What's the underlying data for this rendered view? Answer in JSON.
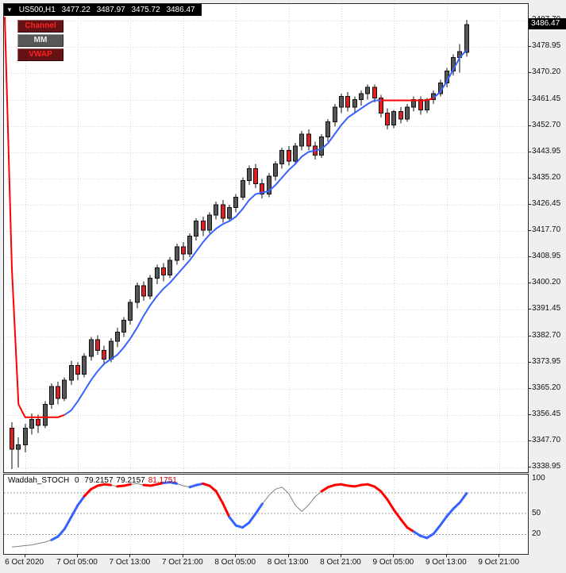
{
  "style": {
    "page_bg": "#efefef",
    "chart_bg": "#ffffff",
    "panel_border": "#2b2b2b",
    "grid": "#d6d6d6",
    "level": "#9f9f9f",
    "candle_bull": "#565656",
    "candle_bear": "#dd2020",
    "candle_outline": "#111111",
    "axis_text": "#111111"
  },
  "title_bar": {
    "marker": "▼",
    "symbol_period": "US500,H1",
    "open": "3477.22",
    "high": "3487.97",
    "low": "3475.72",
    "close": "3486.47"
  },
  "buttons": [
    {
      "label": "Channel",
      "bg": "#641214",
      "fg": "#ff2222"
    },
    {
      "label": "MM",
      "bg": "#575757",
      "fg": "#efefef"
    },
    {
      "label": "VWAP",
      "bg": "#641214",
      "fg": "#ff2222"
    }
  ],
  "price_axis": {
    "current": {
      "label": "3486.47",
      "value": 3486.47,
      "bg": "#000000",
      "fg": "#ffffff"
    },
    "labels": [
      {
        "text": "3487.70",
        "value": 3487.7
      },
      {
        "text": "3478.95",
        "value": 3478.95
      },
      {
        "text": "3470.20",
        "value": 3470.2
      },
      {
        "text": "3461.45",
        "value": 3461.45
      },
      {
        "text": "3452.70",
        "value": 3452.7
      },
      {
        "text": "3443.95",
        "value": 3443.95
      },
      {
        "text": "3435.20",
        "value": 3435.2
      },
      {
        "text": "3426.45",
        "value": 3426.45
      },
      {
        "text": "3417.70",
        "value": 3417.7
      },
      {
        "text": "3408.95",
        "value": 3408.95
      },
      {
        "text": "3400.20",
        "value": 3400.2
      },
      {
        "text": "3391.45",
        "value": 3391.45
      },
      {
        "text": "3382.70",
        "value": 3382.7
      },
      {
        "text": "3373.95",
        "value": 3373.95
      },
      {
        "text": "3365.20",
        "value": 3365.2
      },
      {
        "text": "3356.45",
        "value": 3356.45
      },
      {
        "text": "3347.70",
        "value": 3347.7
      },
      {
        "text": "3338.95",
        "value": 3338.95
      }
    ]
  },
  "time_axis": {
    "labels": [
      {
        "text": "6 Oct 2020",
        "candle_index": 2
      },
      {
        "text": "7 Oct 05:00",
        "candle_index": 10
      },
      {
        "text": "7 Oct 13:00",
        "candle_index": 18
      },
      {
        "text": "7 Oct 21:00",
        "candle_index": 26
      },
      {
        "text": "8 Oct 05:00",
        "candle_index": 34
      },
      {
        "text": "8 Oct 13:00",
        "candle_index": 42
      },
      {
        "text": "8 Oct 21:00",
        "candle_index": 50
      },
      {
        "text": "9 Oct 05:00",
        "candle_index": 58
      },
      {
        "text": "9 Oct 13:00",
        "candle_index": 66
      },
      {
        "text": "9 Oct 21:00",
        "candle_index": 74
      }
    ]
  },
  "chart_data": {
    "type": "candlestick",
    "symbol": "US500",
    "timeframe": "H1",
    "ohlc_current": {
      "open": 3477.22,
      "high": 3487.97,
      "low": 3475.72,
      "close": 3486.47
    },
    "y_range": [
      3337.4,
      3493.3
    ],
    "layout": {
      "x0": 10,
      "dx": 8.3,
      "grid": true
    },
    "candles": [
      [
        3352,
        3354,
        3338.5,
        3345
      ],
      [
        3345,
        3349,
        3339,
        3346.5
      ],
      [
        3346.5,
        3353.5,
        3344,
        3352
      ],
      [
        3352,
        3357,
        3350,
        3355
      ],
      [
        3355,
        3356.5,
        3350.5,
        3353
      ],
      [
        3353,
        3361,
        3352,
        3360
      ],
      [
        3360,
        3367,
        3358.5,
        3366
      ],
      [
        3366,
        3367.5,
        3360,
        3362
      ],
      [
        3362,
        3369,
        3361,
        3368
      ],
      [
        3368,
        3374.5,
        3366.5,
        3373
      ],
      [
        3373,
        3374,
        3368,
        3370
      ],
      [
        3370,
        3377,
        3369,
        3376
      ],
      [
        3376,
        3382.5,
        3374.5,
        3381.5
      ],
      [
        3381.5,
        3383,
        3376.5,
        3378
      ],
      [
        3378,
        3379.5,
        3373,
        3375
      ],
      [
        3375,
        3382,
        3374,
        3381
      ],
      [
        3381,
        3385.5,
        3379,
        3384
      ],
      [
        3384,
        3389,
        3382.5,
        3388
      ],
      [
        3388,
        3395,
        3386.5,
        3394
      ],
      [
        3394,
        3400.5,
        3392,
        3399.5
      ],
      [
        3399.5,
        3401,
        3394.5,
        3396
      ],
      [
        3396,
        3403,
        3395,
        3402
      ],
      [
        3402,
        3406.5,
        3400,
        3405.5
      ],
      [
        3405.5,
        3407,
        3401,
        3403
      ],
      [
        3403,
        3409,
        3402,
        3408
      ],
      [
        3408,
        3413.5,
        3406.5,
        3412.5
      ],
      [
        3412.5,
        3414,
        3408,
        3410
      ],
      [
        3410,
        3417,
        3409,
        3416
      ],
      [
        3416,
        3422,
        3414.5,
        3421
      ],
      [
        3421,
        3422.5,
        3416,
        3418
      ],
      [
        3418,
        3424,
        3417,
        3423
      ],
      [
        3423,
        3427.5,
        3421.5,
        3426.5
      ],
      [
        3426.5,
        3428,
        3420.5,
        3422
      ],
      [
        3422,
        3426.5,
        3421,
        3425.5
      ],
      [
        3425.5,
        3430,
        3424,
        3429
      ],
      [
        3429,
        3435.5,
        3428,
        3434.5
      ],
      [
        3434.5,
        3439.5,
        3433,
        3438.5
      ],
      [
        3438.5,
        3440,
        3432,
        3433.5
      ],
      [
        3433.5,
        3435,
        3428.5,
        3430
      ],
      [
        3430,
        3437,
        3429,
        3436
      ],
      [
        3436,
        3441,
        3434.5,
        3440
      ],
      [
        3440,
        3445.5,
        3438.5,
        3444.5
      ],
      [
        3444.5,
        3446,
        3439.5,
        3441
      ],
      [
        3441,
        3447,
        3440,
        3446
      ],
      [
        3446,
        3451,
        3444.5,
        3450
      ],
      [
        3450,
        3451.5,
        3444.5,
        3446
      ],
      [
        3446,
        3447.5,
        3441.5,
        3443
      ],
      [
        3443,
        3450,
        3442,
        3449
      ],
      [
        3449,
        3455,
        3447.5,
        3454
      ],
      [
        3454,
        3460,
        3452.5,
        3459
      ],
      [
        3459,
        3463.5,
        3457,
        3462.5
      ],
      [
        3462.5,
        3464,
        3457.5,
        3459
      ],
      [
        3459,
        3462.5,
        3457,
        3461.5
      ],
      [
        3461.5,
        3464.5,
        3459.5,
        3463.5
      ],
      [
        3463.5,
        3466.5,
        3461.5,
        3465.5
      ],
      [
        3465.5,
        3466.5,
        3460.5,
        3462
      ],
      [
        3462,
        3463,
        3455.5,
        3457
      ],
      [
        3457,
        3458.5,
        3451.5,
        3453
      ],
      [
        3453,
        3458,
        3452,
        3457.5
      ],
      [
        3457.5,
        3459,
        3453.5,
        3455
      ],
      [
        3455,
        3460,
        3454,
        3459
      ],
      [
        3459,
        3462.5,
        3457.5,
        3461.5
      ],
      [
        3461.5,
        3462.5,
        3456.5,
        3458
      ],
      [
        3458,
        3462,
        3457,
        3461.5
      ],
      [
        3461.5,
        3464.5,
        3460,
        3463.5
      ],
      [
        3463.5,
        3468,
        3462.5,
        3467
      ],
      [
        3467,
        3472,
        3465.5,
        3471
      ],
      [
        3471,
        3476.5,
        3469.5,
        3475.5
      ],
      [
        3475.5,
        3480,
        3470.5,
        3477.5
      ],
      [
        3477.22,
        3487.97,
        3475.72,
        3486.47
      ]
    ],
    "overlay_line": {
      "name": "channel-ma",
      "blue_color": "#3662ff",
      "red_color": "#ff0000",
      "lead_point": {
        "x": 1,
        "price": 3489
      },
      "values": [
        3405,
        3360,
        3355.7,
        3355.7,
        3355.7,
        3355.7,
        3355.7,
        3355.7,
        3356.5,
        3358,
        3361,
        3364.5,
        3368,
        3371,
        3373.5,
        3375,
        3376.5,
        3379,
        3382,
        3385.5,
        3389.5,
        3393,
        3396,
        3398.5,
        3400.5,
        3403,
        3405.5,
        3408,
        3411,
        3414,
        3416.5,
        3418.5,
        3420,
        3421,
        3422.5,
        3425,
        3428,
        3430,
        3430.5,
        3431,
        3433,
        3435.5,
        3438,
        3440,
        3442.5,
        3444,
        3444.5,
        3445,
        3447,
        3450,
        3453,
        3455.5,
        3457,
        3458.5,
        3460,
        3461.2,
        3461.2,
        3461.2,
        3461.2,
        3461.2,
        3461.2,
        3461.2,
        3461.2,
        3461.2,
        3462,
        3464,
        3467.5,
        3471.5,
        3475.5,
        3478
      ],
      "colors": "rrrrrrrrbbbbbbbbbbbbbbbbbbbbbbbbbbbbbbbbbbbbbbbbbbbbbbbbrrrrrrrrbbbbbb"
    },
    "indicator": {
      "name": "Waddah_STOCH",
      "display": {
        "name": "Waddah_STOCH",
        "param": "0",
        "values": [
          "79.2157",
          "79.2157",
          "81.1751"
        ],
        "value_colors": [
          "#000000",
          "#000000",
          "#cc0000"
        ]
      },
      "scale_max": 106,
      "scale_min": -8,
      "levels": [
        80,
        50,
        20
      ],
      "axis_labels": [
        100,
        50,
        20
      ],
      "gray_color": "#808080",
      "blue_color": "#3662ff",
      "red_color": "#ff0000",
      "values": [
        2,
        3,
        4,
        5,
        7,
        9,
        12,
        17,
        28,
        45,
        62,
        75,
        85,
        90,
        92,
        91,
        89,
        90,
        92,
        93,
        91,
        90,
        92,
        94,
        95,
        93,
        90,
        88,
        91,
        93,
        90,
        82,
        65,
        45,
        33,
        30,
        37,
        50,
        64,
        76,
        85,
        88,
        79,
        62,
        53,
        62,
        74,
        82,
        88,
        91,
        92,
        90,
        89,
        91,
        92,
        89,
        82,
        70,
        55,
        42,
        30,
        24,
        18,
        15,
        21,
        33,
        46,
        57,
        66,
        79
      ],
      "colors": "gggggggbbbbbrrrrgrrggrrrbbggbbrrrrbbbbbgggggggggrrrrrrrrrrrrrrbbbbbbbb"
    }
  }
}
